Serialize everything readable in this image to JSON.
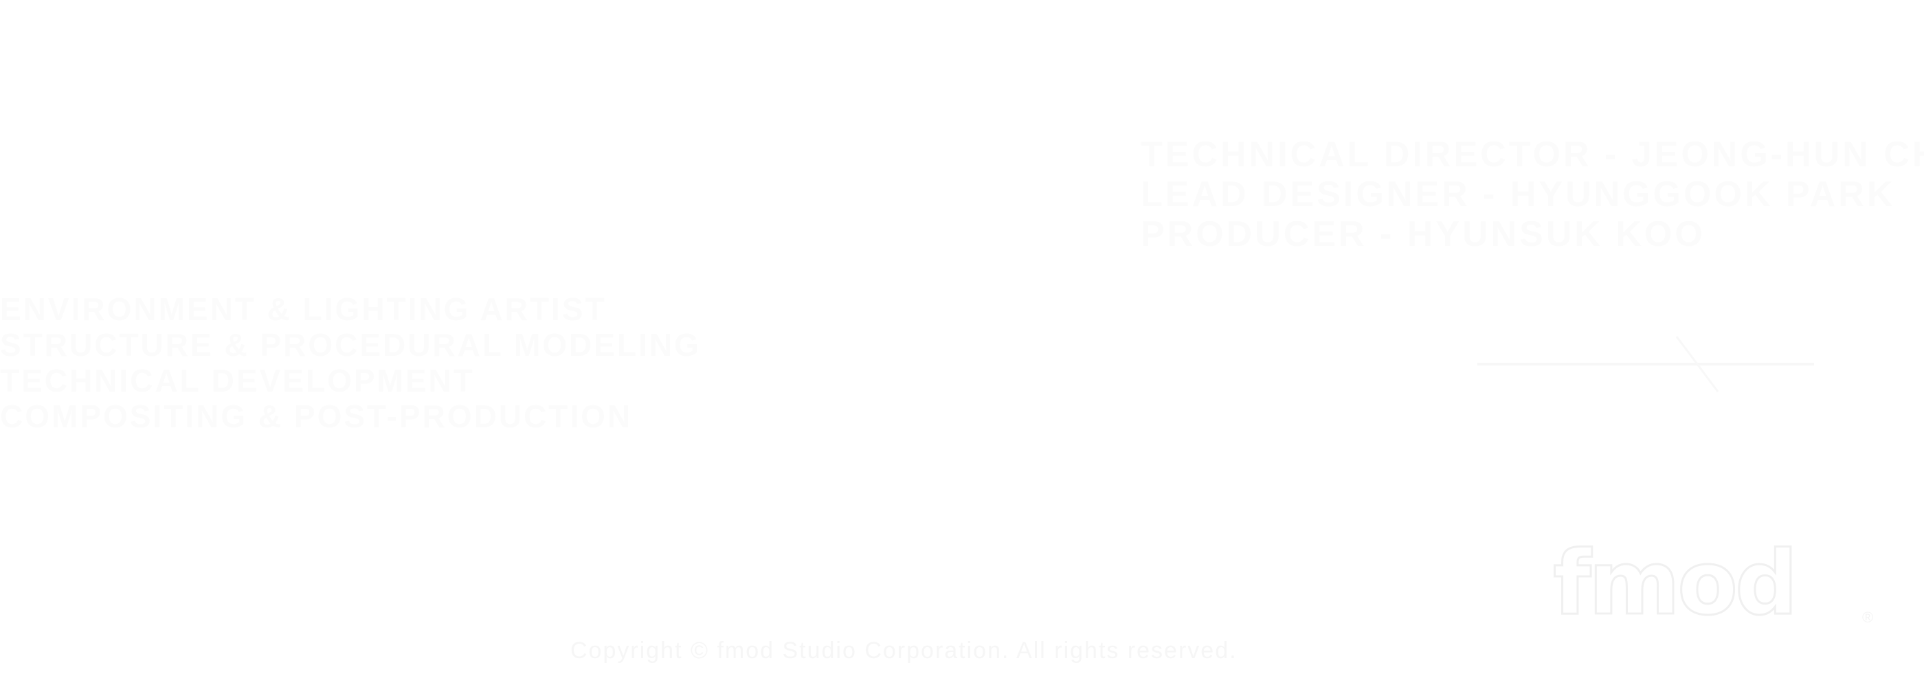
{
  "credits_right": {
    "lines": [
      "TECHNICAL DIRECTOR - JEONG-HUN CHO",
      "LEAD DESIGNER - HYUNGGOOK PARK",
      "PRODUCER - HYUNSUK KOO"
    ]
  },
  "credits_left": {
    "lines": [
      "ENVIRONMENT & LIGHTING ARTIST",
      "STRUCTURE & PROCEDURAL MODELING",
      "TECHNICAL DEVELOPMENT",
      "COMPOSITING & POST-PRODUCTION"
    ]
  },
  "logo": {
    "text": "fmod",
    "registered": "®"
  },
  "footer": {
    "text": "Copyright © fmod Studio Corporation. All rights reserved."
  },
  "colors": {
    "background": "#ffffff",
    "text": "#fbfbfb"
  }
}
